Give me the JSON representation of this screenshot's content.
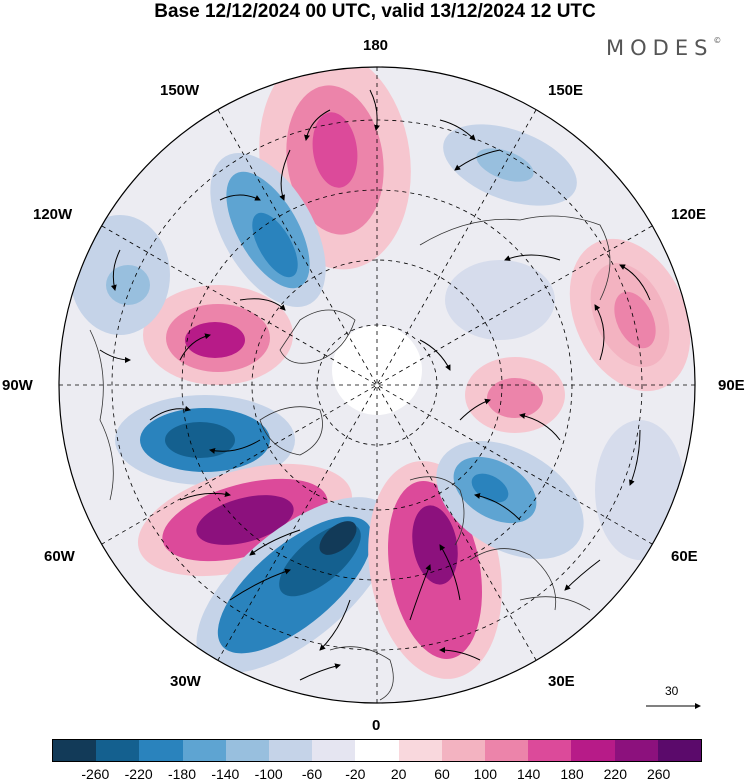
{
  "title": "Base 12/12/2024 00 UTC, valid 13/12/2024 12 UTC",
  "brand": "MODES",
  "brand_mark": "©",
  "longitudes": {
    "n180": "180",
    "e150": "150E",
    "w150": "150W",
    "e120": "120E",
    "w120": "120W",
    "e90": "90E",
    "w90": "90W",
    "e60": "60E",
    "w60": "60W",
    "e30": "30E",
    "w30": "30W",
    "s0": "0"
  },
  "reference_vector": {
    "value": "30"
  },
  "colorbar": {
    "ticks": [
      "-260",
      "-220",
      "-180",
      "-140",
      "-100",
      "-60",
      "-20",
      "20",
      "60",
      "100",
      "140",
      "180",
      "220",
      "260"
    ],
    "colors": [
      "#123a58",
      "#14608f",
      "#2a83bd",
      "#5ea4d2",
      "#98bfde",
      "#c5d3e8",
      "#e5e5f1",
      "#ffffff",
      "#f9d8dd",
      "#f3b3c1",
      "#ec84aa",
      "#dc4a9a",
      "#b71b88",
      "#8c117d",
      "#5b0a6b"
    ]
  },
  "map": {
    "projection": "north-polar-stereographic",
    "field_colors": {
      "pos_weak": "#f6c6cf",
      "pos_mid": "#ec84aa",
      "pos_strong": "#b71b88",
      "pos_max": "#5b0a6b",
      "neg_weak": "#c5d3e8",
      "neg_mid": "#5ea4d2",
      "neg_strong": "#14608f",
      "neg_max": "#123a58",
      "neutral": "#e9e9ef"
    }
  }
}
